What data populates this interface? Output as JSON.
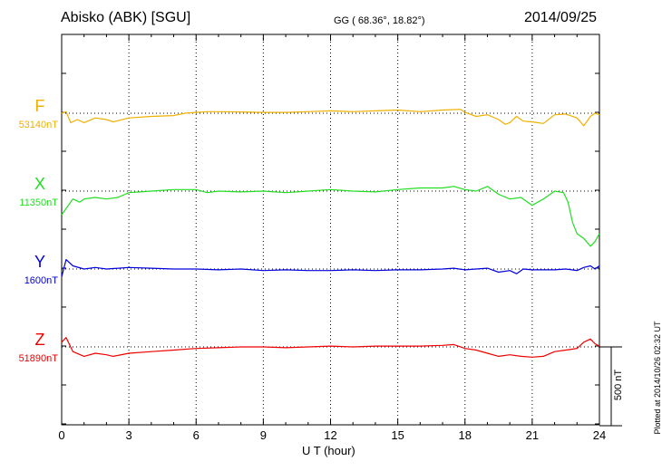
{
  "header": {
    "station": "Abisko (ABK)  [SGU]",
    "coordinates": "GG ( 68.36°,  18.82°)",
    "date": "2014/09/25"
  },
  "footer": {
    "plotted": "Plotted at 2014/10/26 02:32 UT"
  },
  "chart_data": {
    "type": "line",
    "xlabel": "U T (hour)",
    "xlim": [
      0,
      24
    ],
    "x_ticks": [
      "0",
      "3",
      "6",
      "9",
      "12",
      "15",
      "18",
      "21",
      "24"
    ],
    "grid": true,
    "scale_bar": {
      "label": "500 nT",
      "value_nT": 500
    },
    "series": [
      {
        "name": "F",
        "baseline_label": "53140nT",
        "baseline_nT": 53140,
        "color": "#f0b000",
        "points": [
          [
            0,
            53140
          ],
          [
            0.2,
            53150
          ],
          [
            0.4,
            53080
          ],
          [
            0.7,
            53100
          ],
          [
            1,
            53080
          ],
          [
            1.5,
            53110
          ],
          [
            2,
            53100
          ],
          [
            2.3,
            53085
          ],
          [
            3,
            53110
          ],
          [
            4,
            53120
          ],
          [
            5,
            53125
          ],
          [
            5.5,
            53140
          ],
          [
            6,
            53145
          ],
          [
            6.5,
            53150
          ],
          [
            7,
            53150
          ],
          [
            8,
            53148
          ],
          [
            9,
            53145
          ],
          [
            10,
            53145
          ],
          [
            11,
            53150
          ],
          [
            12,
            53155
          ],
          [
            13,
            53150
          ],
          [
            14,
            53155
          ],
          [
            15,
            53160
          ],
          [
            16,
            53150
          ],
          [
            17,
            53160
          ],
          [
            17.8,
            53165
          ],
          [
            18,
            53145
          ],
          [
            18.5,
            53120
          ],
          [
            19,
            53130
          ],
          [
            19.5,
            53100
          ],
          [
            19.8,
            53070
          ],
          [
            20,
            53080
          ],
          [
            20.3,
            53120
          ],
          [
            20.6,
            53090
          ],
          [
            21,
            53085
          ],
          [
            21.5,
            53075
          ],
          [
            22,
            53130
          ],
          [
            22.5,
            53135
          ],
          [
            23,
            53110
          ],
          [
            23.3,
            53060
          ],
          [
            23.6,
            53120
          ],
          [
            23.8,
            53140
          ],
          [
            24,
            53130
          ]
        ]
      },
      {
        "name": "X",
        "baseline_label": "11350nT",
        "baseline_nT": 11350,
        "color": "#22dd22",
        "points": [
          [
            0,
            11200
          ],
          [
            0.5,
            11300
          ],
          [
            0.8,
            11280
          ],
          [
            1,
            11300
          ],
          [
            1.5,
            11310
          ],
          [
            2,
            11300
          ],
          [
            2.5,
            11310
          ],
          [
            3,
            11340
          ],
          [
            3.5,
            11345
          ],
          [
            4,
            11350
          ],
          [
            5,
            11360
          ],
          [
            6,
            11360
          ],
          [
            6.5,
            11340
          ],
          [
            7,
            11350
          ],
          [
            8,
            11345
          ],
          [
            9,
            11350
          ],
          [
            10,
            11340
          ],
          [
            11,
            11350
          ],
          [
            12,
            11360
          ],
          [
            13,
            11350
          ],
          [
            14,
            11345
          ],
          [
            15,
            11360
          ],
          [
            16,
            11370
          ],
          [
            17,
            11370
          ],
          [
            17.5,
            11380
          ],
          [
            18,
            11360
          ],
          [
            18.5,
            11350
          ],
          [
            19,
            11380
          ],
          [
            19.5,
            11330
          ],
          [
            20,
            11300
          ],
          [
            20.5,
            11310
          ],
          [
            21,
            11260
          ],
          [
            21.5,
            11300
          ],
          [
            22,
            11350
          ],
          [
            22.4,
            11340
          ],
          [
            22.6,
            11280
          ],
          [
            22.8,
            11150
          ],
          [
            23,
            11080
          ],
          [
            23.3,
            11050
          ],
          [
            23.6,
            11000
          ],
          [
            23.8,
            11030
          ],
          [
            24,
            11080
          ]
        ]
      },
      {
        "name": "Y",
        "baseline_label": "1600nT",
        "baseline_nT": 1600,
        "color": "#0000dd",
        "points": [
          [
            0,
            1550
          ],
          [
            0.2,
            1660
          ],
          [
            0.5,
            1620
          ],
          [
            1,
            1600
          ],
          [
            1.5,
            1610
          ],
          [
            2,
            1600
          ],
          [
            3,
            1610
          ],
          [
            4,
            1605
          ],
          [
            5,
            1600
          ],
          [
            6,
            1600
          ],
          [
            7,
            1595
          ],
          [
            8,
            1600
          ],
          [
            9,
            1590
          ],
          [
            10,
            1595
          ],
          [
            11,
            1590
          ],
          [
            12,
            1590
          ],
          [
            13,
            1595
          ],
          [
            14,
            1590
          ],
          [
            15,
            1595
          ],
          [
            16,
            1595
          ],
          [
            17,
            1600
          ],
          [
            17.5,
            1605
          ],
          [
            18,
            1595
          ],
          [
            18.5,
            1600
          ],
          [
            19,
            1605
          ],
          [
            19.5,
            1580
          ],
          [
            20,
            1590
          ],
          [
            20.3,
            1570
          ],
          [
            20.6,
            1600
          ],
          [
            21,
            1595
          ],
          [
            22,
            1595
          ],
          [
            22.5,
            1600
          ],
          [
            23,
            1590
          ],
          [
            23.3,
            1610
          ],
          [
            23.6,
            1620
          ],
          [
            23.8,
            1600
          ],
          [
            24,
            1620
          ]
        ]
      },
      {
        "name": "Z",
        "baseline_label": "51890nT",
        "baseline_nT": 51890,
        "color": "#ee0000",
        "points": [
          [
            0,
            51920
          ],
          [
            0.2,
            51950
          ],
          [
            0.5,
            51860
          ],
          [
            1,
            51830
          ],
          [
            1.5,
            51850
          ],
          [
            2,
            51840
          ],
          [
            2.3,
            51830
          ],
          [
            3,
            51850
          ],
          [
            4,
            51860
          ],
          [
            5,
            51870
          ],
          [
            6,
            51880
          ],
          [
            7,
            51885
          ],
          [
            8,
            51890
          ],
          [
            9,
            51890
          ],
          [
            10,
            51885
          ],
          [
            11,
            51890
          ],
          [
            12,
            51895
          ],
          [
            13,
            51890
          ],
          [
            14,
            51895
          ],
          [
            15,
            51895
          ],
          [
            16,
            51895
          ],
          [
            17,
            51900
          ],
          [
            17.5,
            51905
          ],
          [
            18,
            51880
          ],
          [
            18.5,
            51870
          ],
          [
            19,
            51850
          ],
          [
            19.5,
            51830
          ],
          [
            20,
            51840
          ],
          [
            20.5,
            51830
          ],
          [
            21,
            51825
          ],
          [
            21.5,
            51830
          ],
          [
            22,
            51860
          ],
          [
            22.5,
            51870
          ],
          [
            23,
            51880
          ],
          [
            23.3,
            51920
          ],
          [
            23.6,
            51940
          ],
          [
            23.8,
            51910
          ],
          [
            24,
            51895
          ]
        ]
      }
    ]
  }
}
